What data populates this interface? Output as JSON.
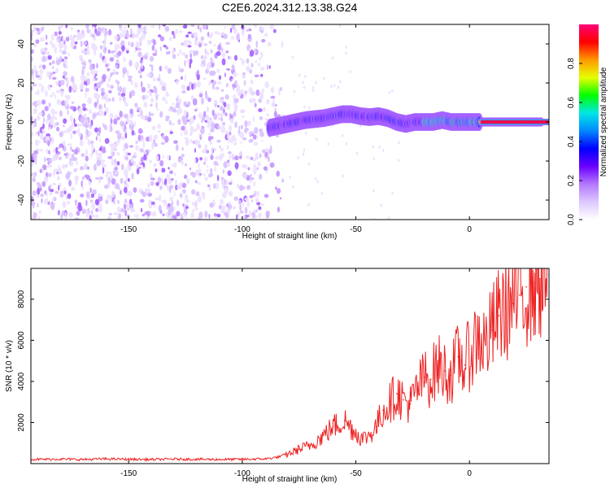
{
  "title": "C2E6.2024.312.13.38.G24",
  "chart_data": [
    {
      "type": "heatmap",
      "xlabel": "Height of straight line (km)",
      "ylabel": "Frequency (Hz)",
      "xlim": [
        -193,
        35
      ],
      "ylim": [
        -50,
        50
      ],
      "xticks": [
        -150,
        -100,
        -50,
        0
      ],
      "yticks": [
        -40,
        -20,
        0,
        20,
        40
      ],
      "grid": false,
      "colorbar": {
        "label": "Normalized spectral amplitude",
        "range": [
          0.0,
          1.0
        ],
        "ticks": [
          "0.0",
          "0.2",
          "0.4",
          "0.6",
          "0.8"
        ],
        "colormap": [
          "#ffffff",
          "#dcc8ff",
          "#b478ff",
          "#6a00ff",
          "#0000ff",
          "#0088ff",
          "#00e6e6",
          "#00ff00",
          "#e6ff00",
          "#ff9900",
          "#ff0000",
          "#ff0077"
        ]
      },
      "features": {
        "noise_region_x": [
          -193,
          -85
        ],
        "ridge_points": [
          [
            -88,
            -3
          ],
          [
            -84,
            -2
          ],
          [
            -80,
            -1
          ],
          [
            -76,
            0
          ],
          [
            -72,
            1
          ],
          [
            -68,
            1.5
          ],
          [
            -64,
            2
          ],
          [
            -60,
            3
          ],
          [
            -56,
            4
          ],
          [
            -52,
            4
          ],
          [
            -48,
            3
          ],
          [
            -44,
            2.5
          ],
          [
            -40,
            3
          ],
          [
            -36,
            2
          ],
          [
            -32,
            0
          ],
          [
            -28,
            -1
          ],
          [
            -24,
            0
          ],
          [
            -20,
            0
          ],
          [
            -16,
            0
          ],
          [
            -12,
            1
          ],
          [
            -8,
            0
          ],
          [
            -4,
            0
          ],
          [
            0,
            0
          ],
          [
            4,
            0
          ],
          [
            8,
            0
          ],
          [
            12,
            0
          ],
          [
            16,
            0
          ],
          [
            20,
            0
          ],
          [
            24,
            0
          ],
          [
            28,
            0
          ],
          [
            32,
            0
          ]
        ],
        "steady_tone": {
          "x_start": 5,
          "x_end": 35,
          "freq": 0
        }
      }
    },
    {
      "type": "line",
      "xlabel": "Height of straight line (km)",
      "ylabel": "SNR (10 * v/v)",
      "xlim": [
        -193,
        35
      ],
      "ylim": [
        0,
        9500
      ],
      "xticks": [
        -150,
        -100,
        -50,
        0
      ],
      "yticks": [
        2000,
        4000,
        6000,
        8000
      ],
      "grid": false,
      "series": [
        {
          "color": "#ee2222",
          "x": [
            -193,
            -180,
            -170,
            -160,
            -150,
            -140,
            -130,
            -120,
            -110,
            -100,
            -95,
            -90,
            -85,
            -80,
            -75,
            -70,
            -65,
            -60,
            -55,
            -50,
            -47,
            -44,
            -41,
            -38,
            -35,
            -32,
            -29,
            -26,
            -23,
            -20,
            -17,
            -14,
            -11,
            -8,
            -5,
            -2,
            1,
            4,
            7,
            10,
            13,
            16,
            19,
            22,
            25,
            28,
            31,
            35
          ],
          "values": [
            200,
            220,
            200,
            230,
            210,
            200,
            220,
            210,
            200,
            210,
            220,
            230,
            300,
            450,
            700,
            900,
            1300,
            1800,
            2100,
            1500,
            1200,
            1400,
            1800,
            2600,
            3000,
            3400,
            3100,
            2900,
            3600,
            4200,
            4100,
            4800,
            4500,
            4300,
            5200,
            4800,
            5600,
            6200,
            5800,
            6500,
            7200,
            7600,
            7800,
            8200,
            8600,
            8800,
            9000,
            9200
          ]
        }
      ]
    }
  ]
}
